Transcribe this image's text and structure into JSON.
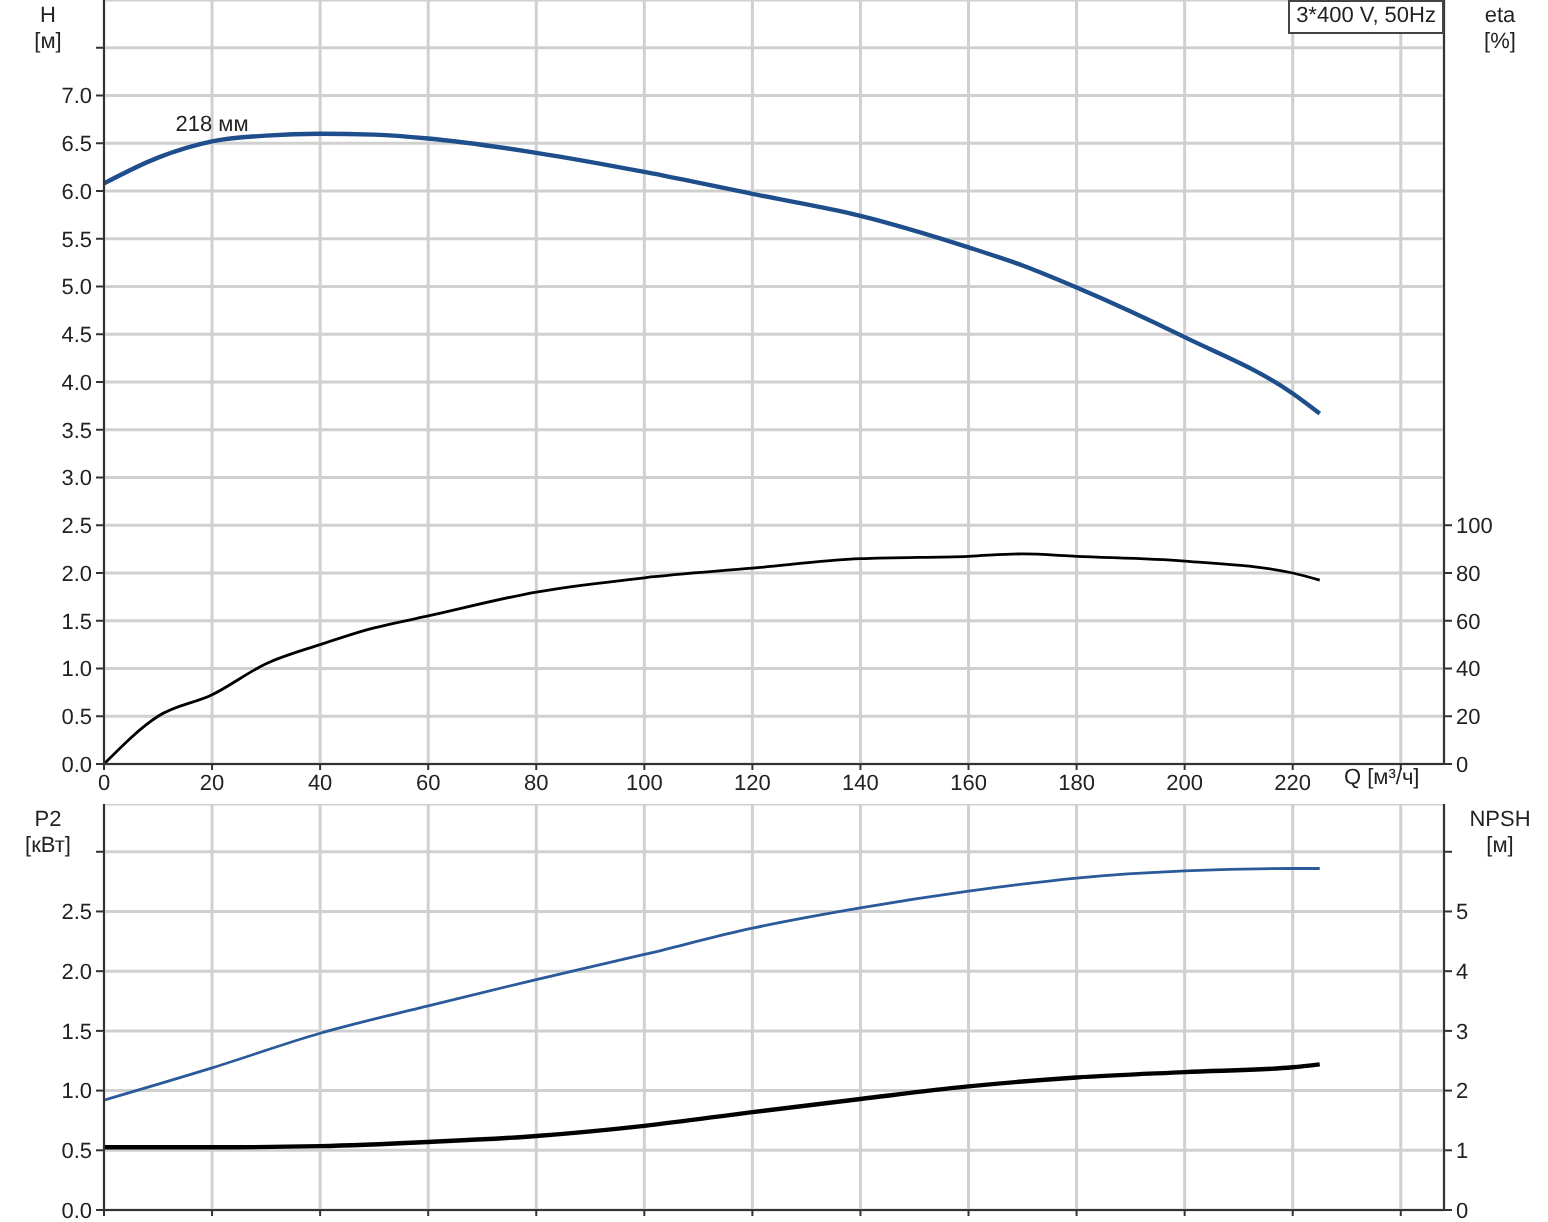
{
  "chart_data": [
    {
      "type": "line",
      "title": "3*400 V, 50Hz",
      "xlabel": "Q [м³/ч]",
      "ylabel": "H [м]",
      "y2label": "eta [%]",
      "x": [
        0,
        10,
        20,
        30,
        40,
        50,
        60,
        80,
        100,
        120,
        140,
        160,
        170,
        180,
        200,
        220,
        225
      ],
      "series": [
        {
          "color": "#1f4e8c",
          "values": [
            6.08,
            6.35,
            6.52,
            6.58,
            6.6,
            6.59,
            6.55,
            6.4,
            6.2,
            5.97,
            5.74,
            5.41,
            5.22,
            4.99,
            4.47,
            3.88,
            3.67
          ]
        },
        {
          "color": "#000000",
          "axis": "y2",
          "values": [
            0,
            20,
            29,
            42,
            50,
            57,
            62,
            72,
            78,
            82,
            86,
            87,
            88,
            87,
            85,
            80,
            77
          ]
        }
      ],
      "xlim": [
        0,
        248
      ],
      "xticks": [
        0,
        20,
        40,
        60,
        80,
        100,
        120,
        140,
        160,
        180,
        200,
        220,
        {
          "value": 240,
          "label": null
        }
      ],
      "ylim": [
        0,
        8
      ],
      "yticks": [
        {
          "value": 0,
          "label": "0.0"
        },
        0.5,
        {
          "value": 1,
          "label": "1.0"
        },
        1.5,
        {
          "value": 2,
          "label": "2.0"
        },
        2.5,
        {
          "value": 3,
          "label": "3.0"
        },
        3.5,
        {
          "value": 4,
          "label": "4.0"
        },
        4.5,
        {
          "value": 5,
          "label": "5.0"
        },
        5.5,
        {
          "value": 6,
          "label": "6.0"
        },
        6.5,
        {
          "value": 7,
          "label": "7.0"
        },
        {
          "value": 7.5,
          "label": null
        }
      ],
      "y2lim": [
        0,
        320
      ],
      "y2ticks": [
        0,
        20,
        40,
        60,
        80,
        100
      ],
      "annotations": [
        {
          "text": "218 мм",
          "x": 20,
          "y": 6.5
        }
      ],
      "grid": true,
      "legend": false,
      "marker": "none",
      "line_style": "solid"
    },
    {
      "type": "line",
      "ylabel": "P2 [кВт]",
      "y2label": "NPSH [м]",
      "x": [
        0,
        20,
        40,
        60,
        80,
        100,
        120,
        140,
        160,
        180,
        200,
        220,
        225
      ],
      "series": [
        {
          "color": "#2a5a9a",
          "values": [
            0.92,
            1.19,
            1.48,
            1.71,
            1.93,
            2.14,
            2.36,
            2.53,
            2.67,
            2.78,
            2.84,
            2.86,
            2.86
          ]
        },
        {
          "color": "#000000",
          "axis": "y2",
          "values": [
            1.05,
            1.05,
            1.07,
            1.14,
            1.24,
            1.41,
            1.64,
            1.86,
            2.07,
            2.22,
            2.31,
            2.39,
            2.44
          ]
        }
      ],
      "xlim": [
        0,
        248
      ],
      "xticks": [
        0,
        20,
        40,
        60,
        80,
        100,
        120,
        140,
        160,
        180,
        200,
        220,
        240
      ],
      "ylim": [
        0,
        3.4
      ],
      "yticks": [
        {
          "value": 0,
          "label": "0.0"
        },
        0.5,
        {
          "value": 1,
          "label": "1.0"
        },
        1.5,
        {
          "value": 2,
          "label": "2.0"
        },
        2.5,
        {
          "value": 3,
          "label": null
        }
      ],
      "y2lim": [
        0,
        6.8
      ],
      "y2ticks": [
        0,
        1,
        2,
        3,
        4,
        5,
        {
          "value": 6,
          "label": null
        }
      ],
      "tick_labels": "y",
      "grid": true,
      "legend": false,
      "marker": "none",
      "line_style": "solid"
    }
  ]
}
